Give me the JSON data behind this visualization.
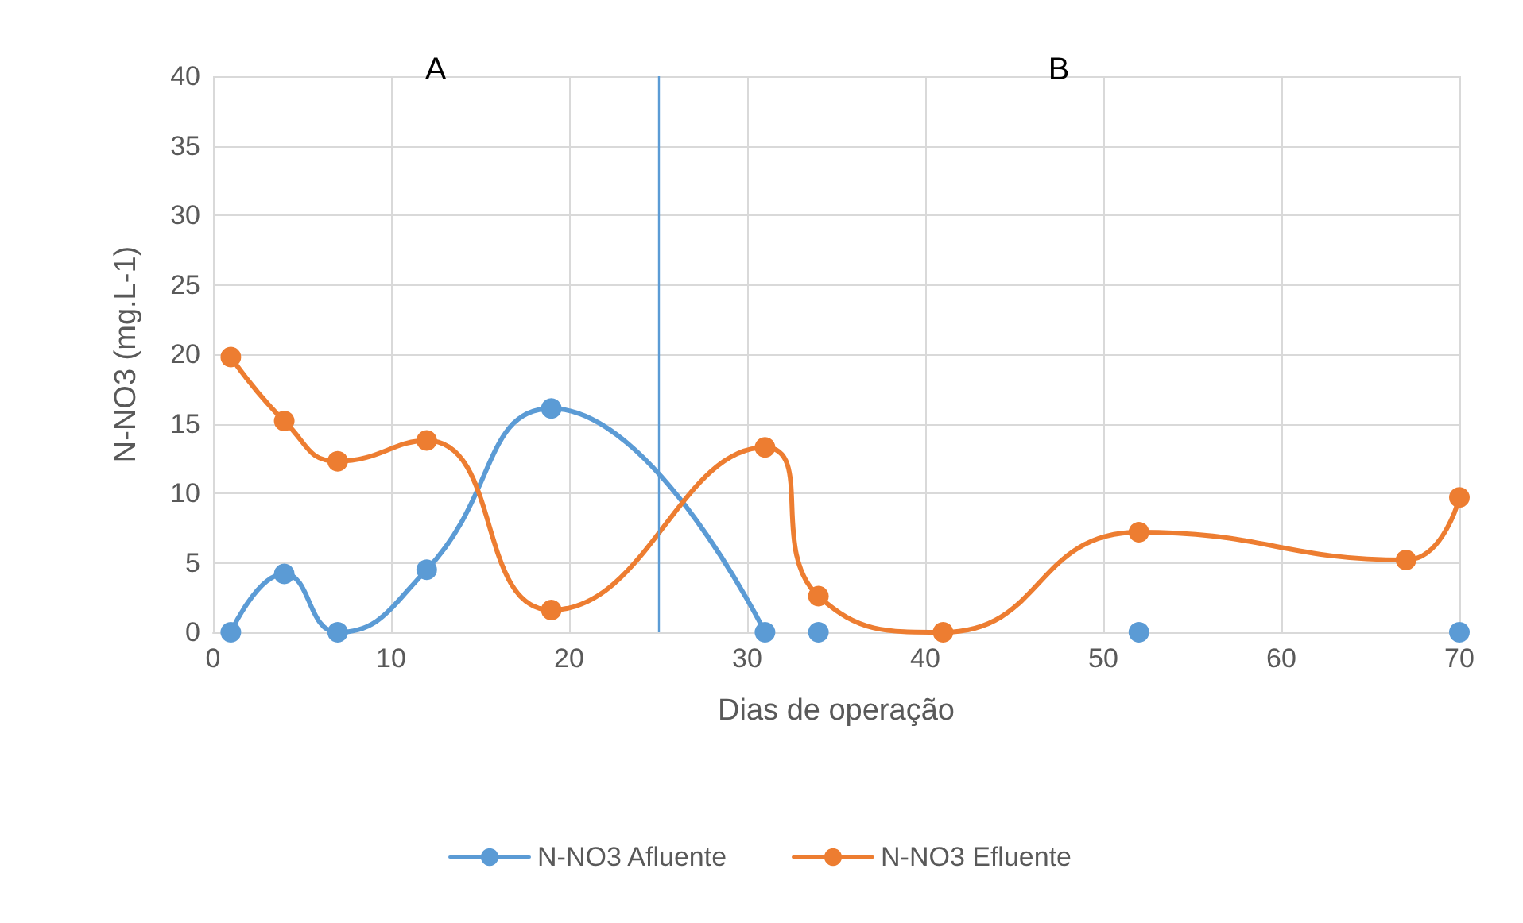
{
  "chart_data": {
    "type": "line",
    "xlabel": "Dias de operação",
    "ylabel": "N-NO3 (mg.L-1)",
    "series": [
      {
        "name": "N-NO3 Afluente",
        "color": "#5b9bd5",
        "x": [
          1,
          4,
          7,
          12,
          19,
          31
        ],
        "values": [
          0,
          4.2,
          0,
          4.5,
          16.1,
          0
        ]
      },
      {
        "type": "scatter",
        "color": "#5b9bd5",
        "x": [
          34,
          52,
          70
        ],
        "values": [
          0,
          0,
          0
        ]
      },
      {
        "name": "N-NO3 Efluente",
        "color": "#ed7d31",
        "x": [
          1,
          4,
          7,
          12,
          19,
          31,
          34,
          41,
          52,
          67,
          70
        ],
        "values": [
          19.8,
          15.2,
          12.3,
          13.8,
          1.6,
          13.3,
          2.6,
          0,
          7.2,
          5.2,
          9.7
        ]
      }
    ],
    "xlim": [
      0,
      70
    ],
    "xticks": [
      0,
      10,
      20,
      30,
      40,
      50,
      60,
      70
    ],
    "ylim": [
      0,
      40
    ],
    "yticks": [
      0,
      5,
      10,
      15,
      20,
      25,
      30,
      35,
      40
    ],
    "ref_lines": [
      {
        "axis": "x",
        "value": 25,
        "color": "#5b9bd5"
      }
    ],
    "annotations": [
      "A",
      "B"
    ],
    "grid": true,
    "legend": "bottom",
    "marker": "circle",
    "line_style": "solid"
  }
}
